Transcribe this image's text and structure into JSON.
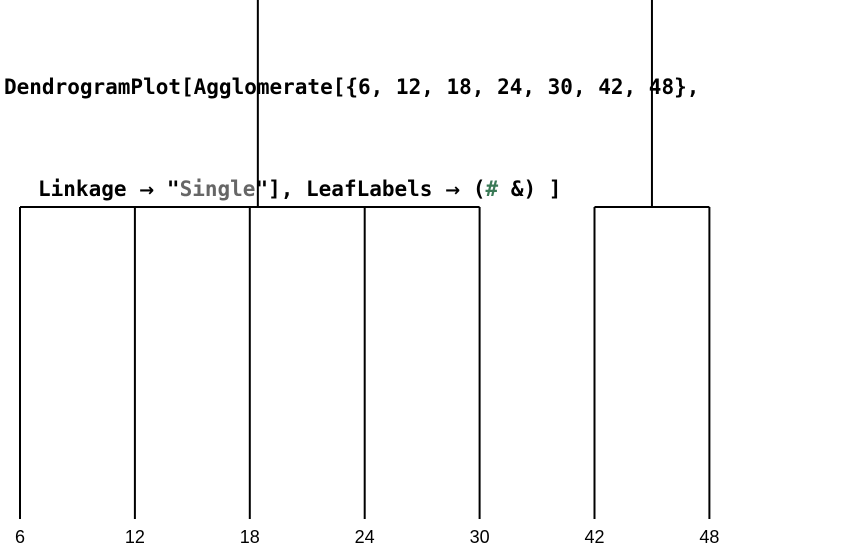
{
  "input": {
    "line1": {
      "head": "DendrogramPlot[Agglomerate[{6, 12, 18, 24, 30, 42, 48},"
    },
    "line2": {
      "linkage_key": "Linkage",
      "arrow1": "→",
      "quote_open": "\"",
      "linkage_value": "Single",
      "quote_close": "\"",
      "between": "], LeafLabels",
      "arrow2": "→",
      "paren_open": "(",
      "slot": "#",
      "tail": " &) ]"
    }
  },
  "dendrogram": {
    "leaves": [
      "6",
      "12",
      "18",
      "24",
      "30",
      "42",
      "48"
    ],
    "clusters": [
      {
        "members": [
          "6",
          "12",
          "18",
          "24",
          "30"
        ],
        "merge_height": 6
      },
      {
        "members": [
          "42",
          "48"
        ],
        "merge_height": 6
      },
      {
        "members": [
          "6",
          "12",
          "18",
          "24",
          "30",
          "42",
          "48"
        ],
        "merge_height": 12
      }
    ],
    "linkage": "Single"
  }
}
